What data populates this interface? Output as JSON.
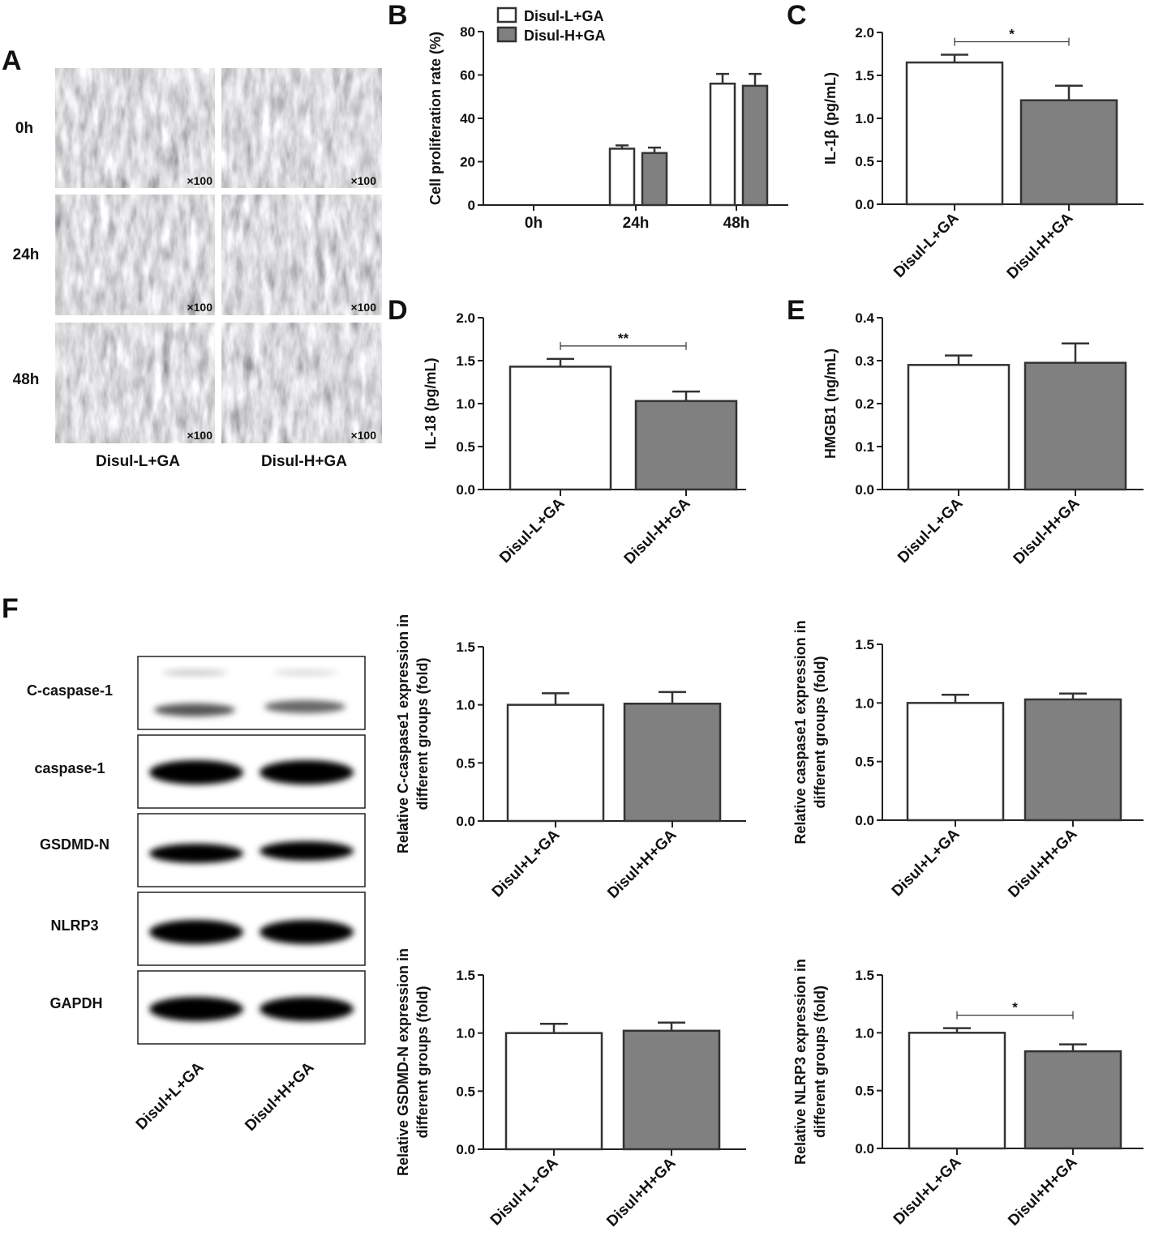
{
  "panel_letters": {
    "a": "A",
    "b": "B",
    "c": "C",
    "d": "D",
    "e": "E",
    "f": "F"
  },
  "micrographs": {
    "row_labels": [
      "0h",
      "24h",
      "48h"
    ],
    "col_labels": [
      "Disul-L+GA",
      "Disul-H+GA"
    ],
    "magnification": "×100"
  },
  "western_blot": {
    "bands": [
      "C-caspase-1",
      "caspase-1",
      "GSDMD-N",
      "NLRP3",
      "GAPDH"
    ],
    "lanes": [
      "Disul+L+GA",
      "Disul+H+GA"
    ]
  },
  "colors": {
    "group1_fill": "#ffffff",
    "group2_fill": "#808080",
    "stroke": "#333333"
  },
  "chart_data": [
    {
      "id": "B",
      "type": "bar",
      "categories": [
        "0h",
        "24h",
        "48h"
      ],
      "series": [
        {
          "name": "Disul-L+GA",
          "values": [
            0,
            26,
            56
          ],
          "errors": [
            0,
            1.5,
            4.5
          ]
        },
        {
          "name": "Disul-H+GA",
          "values": [
            0,
            24,
            55
          ],
          "errors": [
            0,
            2.5,
            5.5
          ]
        }
      ],
      "ylabel": "Cell proliferation rate (%)",
      "ylim": [
        0,
        80
      ],
      "yticks": [
        "0",
        "20",
        "40",
        "60",
        "80"
      ],
      "legend": "top-left"
    },
    {
      "id": "C",
      "type": "bar",
      "categories": [
        "Disul-L+GA",
        "Disul-H+GA"
      ],
      "values": [
        1.65,
        1.21
      ],
      "errors": [
        0.09,
        0.17
      ],
      "ylabel": "IL-1β (pg/mL)",
      "ylim": [
        0,
        2.0
      ],
      "yticks": [
        "0.0",
        "0.5",
        "1.0",
        "1.5",
        "2.0"
      ],
      "significance": "*"
    },
    {
      "id": "D",
      "type": "bar",
      "categories": [
        "Disul-L+GA",
        "Disul-H+GA"
      ],
      "values": [
        1.43,
        1.03
      ],
      "errors": [
        0.09,
        0.11
      ],
      "ylabel": "IL-18 (pg/mL)",
      "ylim": [
        0,
        2.0
      ],
      "yticks": [
        "0.0",
        "0.5",
        "1.0",
        "1.5",
        "2.0"
      ],
      "significance": "**"
    },
    {
      "id": "E",
      "type": "bar",
      "categories": [
        "Disul-L+GA",
        "Disul-H+GA"
      ],
      "values": [
        0.29,
        0.295
      ],
      "errors": [
        0.022,
        0.045
      ],
      "ylabel": "HMGB1 (ng/mL)",
      "ylim": [
        0,
        0.4
      ],
      "yticks": [
        "0.0",
        "0.1",
        "0.2",
        "0.3",
        "0.4"
      ],
      "significance": ""
    },
    {
      "id": "F1",
      "type": "bar",
      "categories": [
        "Disul+L+GA",
        "Disul+H+GA"
      ],
      "values": [
        1.0,
        1.01
      ],
      "errors": [
        0.1,
        0.1
      ],
      "ylabel": [
        "Relative C-caspase1 expression in",
        "different groups (fold)"
      ],
      "ylim": [
        0,
        1.5
      ],
      "yticks": [
        "0.0",
        "0.5",
        "1.0",
        "1.5"
      ],
      "significance": ""
    },
    {
      "id": "F2",
      "type": "bar",
      "categories": [
        "Disul+L+GA",
        "Disul+H+GA"
      ],
      "values": [
        1.0,
        1.03
      ],
      "errors": [
        0.07,
        0.05
      ],
      "ylabel": [
        "Relative caspase1 expression in",
        "different groups (fold)"
      ],
      "ylim": [
        0,
        1.5
      ],
      "yticks": [
        "0.0",
        "0.5",
        "1.0",
        "1.5"
      ],
      "significance": ""
    },
    {
      "id": "F3",
      "type": "bar",
      "categories": [
        "Disul+L+GA",
        "Disul+H+GA"
      ],
      "values": [
        1.0,
        1.02
      ],
      "errors": [
        0.08,
        0.07
      ],
      "ylabel": [
        "Relative GSDMD-N expression in",
        "different groups (fold)"
      ],
      "ylim": [
        0,
        1.5
      ],
      "yticks": [
        "0.0",
        "0.5",
        "1.0",
        "1.5"
      ],
      "significance": ""
    },
    {
      "id": "F4",
      "type": "bar",
      "categories": [
        "Disul+L+GA",
        "Disul+H+GA"
      ],
      "values": [
        1.0,
        0.84
      ],
      "errors": [
        0.04,
        0.06
      ],
      "ylabel": [
        "Relative NLRP3 expression in",
        "different groups (fold)"
      ],
      "ylim": [
        0,
        1.5
      ],
      "yticks": [
        "0.0",
        "0.5",
        "1.0",
        "1.5"
      ],
      "significance": "*"
    }
  ]
}
